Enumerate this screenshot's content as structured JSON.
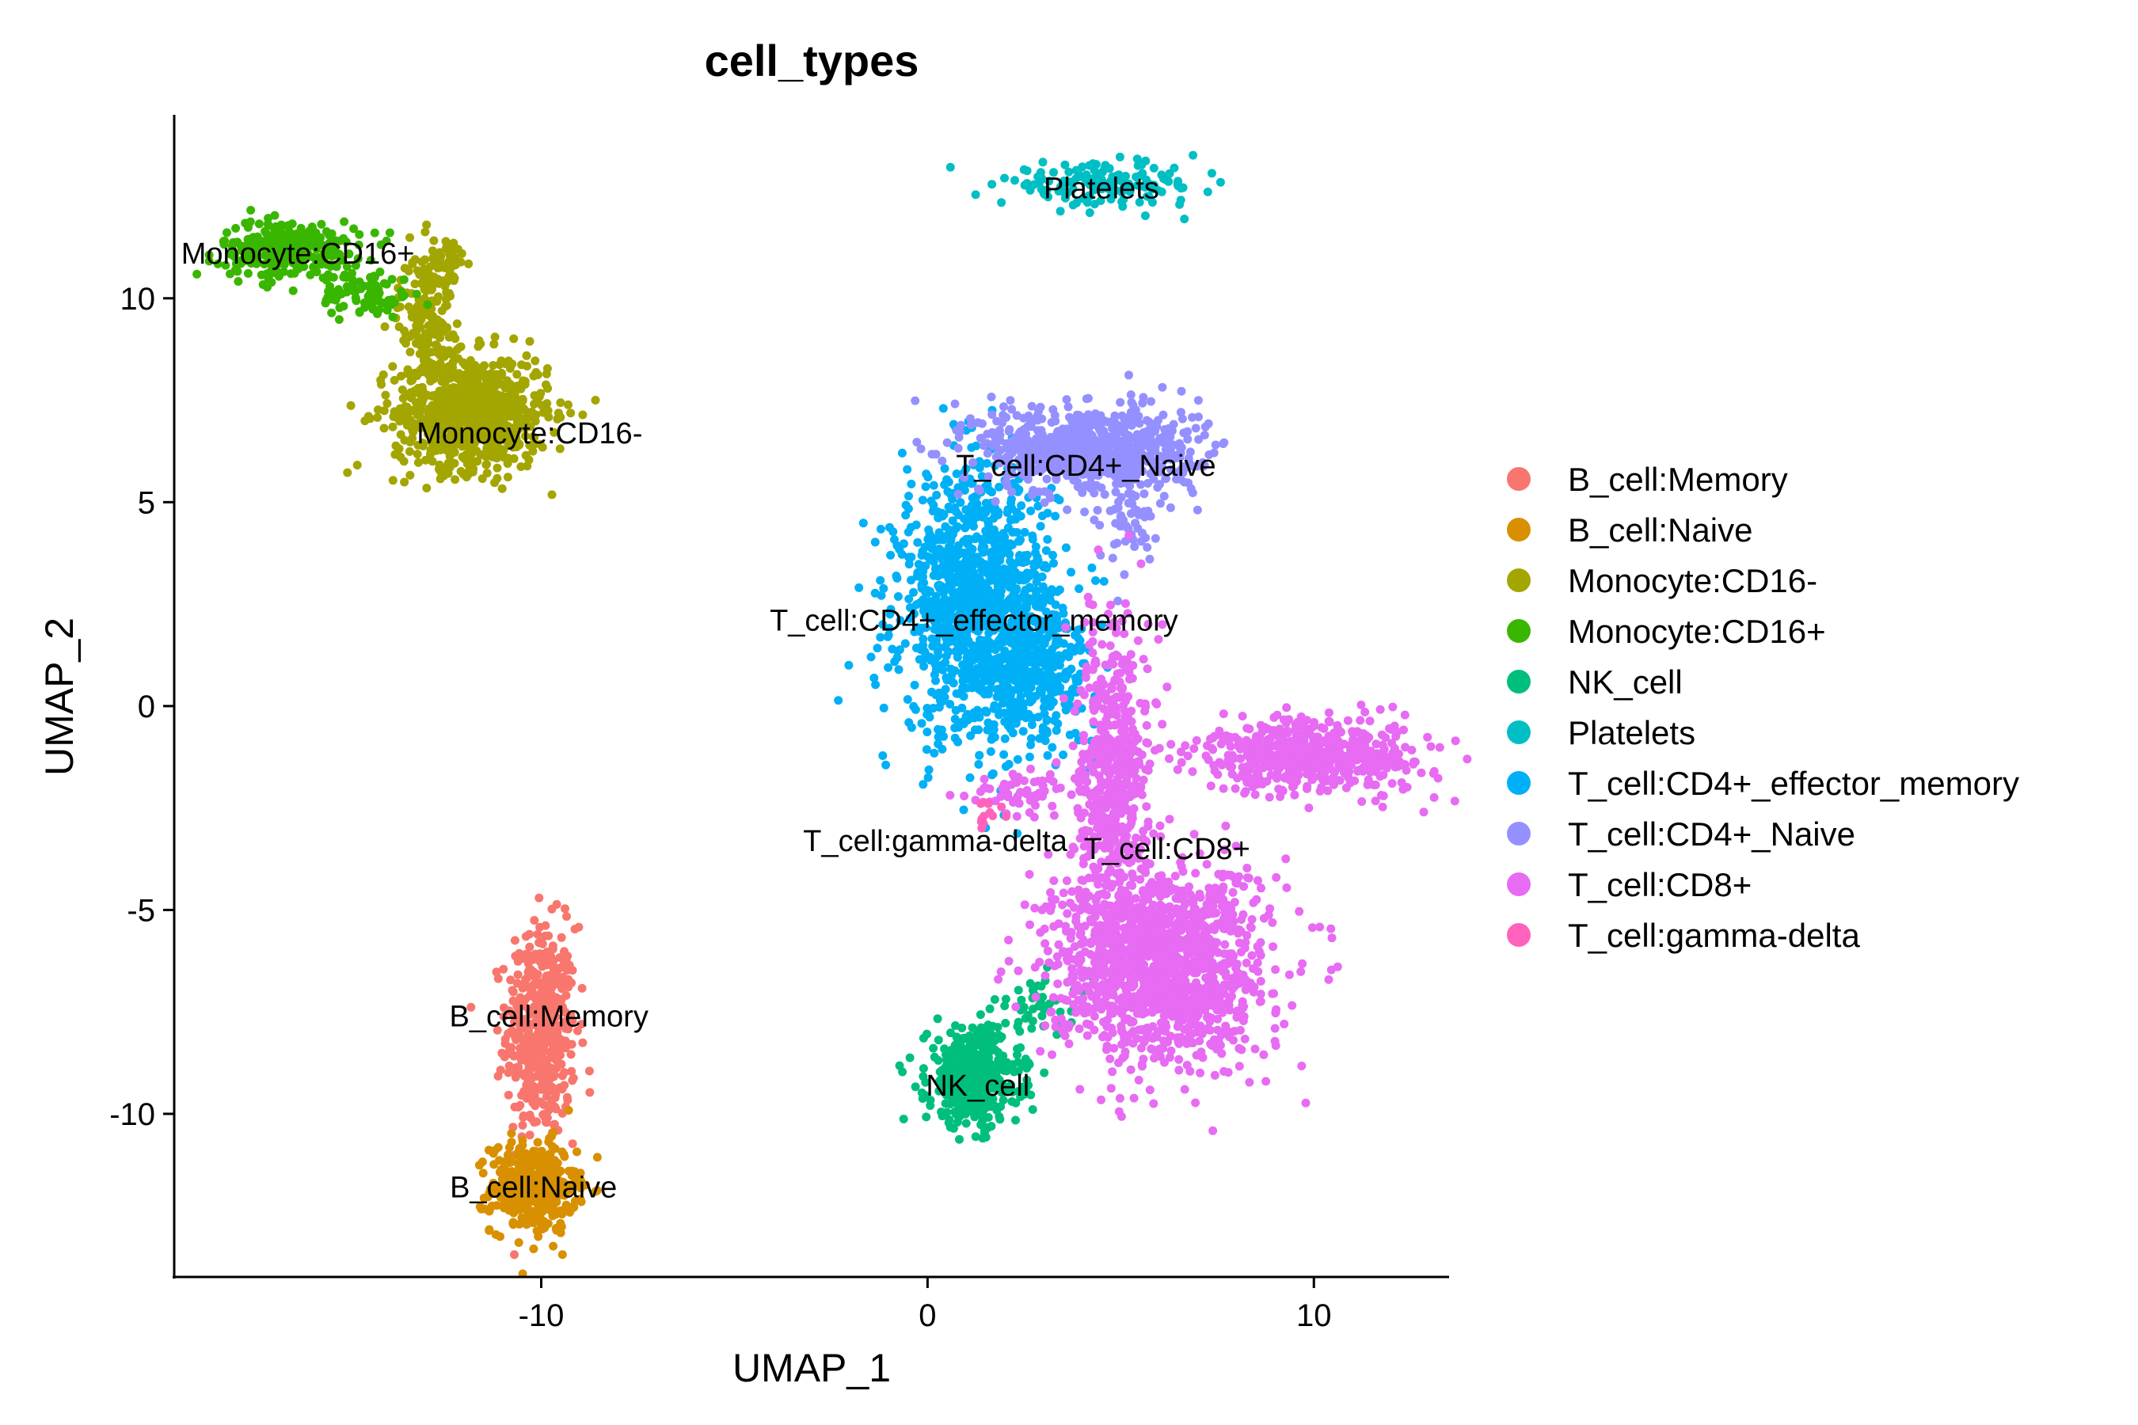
{
  "chart_data": {
    "type": "scatter",
    "title": "cell_types",
    "xlabel": "UMAP_1",
    "ylabel": "UMAP_2",
    "xlim": [
      -19.5,
      13.5
    ],
    "ylim": [
      -14,
      14.5
    ],
    "xticks": [
      -10,
      0,
      10
    ],
    "yticks": [
      10,
      5,
      0,
      -5,
      -10
    ],
    "xtick_labels": [
      "-10",
      "0",
      "10"
    ],
    "ytick_labels": [
      "10",
      "5",
      "0",
      "-5",
      "-10"
    ],
    "grid": false,
    "legend_position": "right",
    "series": [
      {
        "name": "B_cell:Memory",
        "color": "#F8766D",
        "clusters": [
          {
            "cx": -10.0,
            "cy": -8.0,
            "sx": 0.45,
            "sy": 1.3,
            "n": 500
          }
        ],
        "label": "B_cell:Memory",
        "label_pos": [
          -9.8,
          -7.6
        ]
      },
      {
        "name": "B_cell:Naive",
        "color": "#D89000",
        "clusters": [
          {
            "cx": -10.2,
            "cy": -11.8,
            "sx": 0.55,
            "sy": 0.55,
            "n": 400
          }
        ],
        "label": "B_cell:Naive",
        "label_pos": [
          -10.2,
          -11.8
        ]
      },
      {
        "name": "Monocyte:CD16-",
        "color": "#A3A500",
        "clusters": [
          {
            "cx": -11.8,
            "cy": 7.2,
            "sx": 1.0,
            "sy": 0.7,
            "n": 800
          },
          {
            "cx": -13.0,
            "cy": 9.5,
            "sx": 0.35,
            "sy": 0.8,
            "n": 150
          },
          {
            "cx": -12.5,
            "cy": 10.7,
            "sx": 0.25,
            "sy": 0.5,
            "n": 60
          }
        ],
        "label": "Monocyte:CD16-",
        "label_pos": [
          -10.3,
          6.7
        ]
      },
      {
        "name": "Monocyte:CD16+",
        "color": "#39B600",
        "clusters": [
          {
            "cx": -16.5,
            "cy": 11.2,
            "sx": 0.9,
            "sy": 0.35,
            "n": 300
          },
          {
            "cx": -14.5,
            "cy": 10.1,
            "sx": 0.6,
            "sy": 0.3,
            "n": 80
          }
        ],
        "label": "Monocyte:CD16+",
        "label_pos": [
          -16.3,
          11.1
        ]
      },
      {
        "name": "NK_cell",
        "color": "#00BF7D",
        "clusters": [
          {
            "cx": 1.2,
            "cy": -9.1,
            "sx": 0.6,
            "sy": 0.6,
            "n": 450
          },
          {
            "cx": 3.0,
            "cy": -7.3,
            "sx": 0.6,
            "sy": 0.35,
            "n": 40
          }
        ],
        "label": "NK_cell",
        "label_pos": [
          1.3,
          -9.3
        ]
      },
      {
        "name": "Platelets",
        "color": "#00BFC4",
        "clusters": [
          {
            "cx": 4.5,
            "cy": 12.8,
            "sx": 1.3,
            "sy": 0.25,
            "n": 160
          }
        ],
        "label": "Platelets",
        "label_pos": [
          4.5,
          12.7
        ]
      },
      {
        "name": "T_cell:CD4+_effector_memory",
        "color": "#00B0F6",
        "clusters": [
          {
            "cx": 1.3,
            "cy": 2.5,
            "sx": 1.0,
            "sy": 1.6,
            "n": 1200
          },
          {
            "cx": 2.8,
            "cy": 0.8,
            "sx": 0.8,
            "sy": 0.8,
            "n": 300
          }
        ],
        "label": "T_cell:CD4+_effector_memory",
        "label_pos": [
          1.2,
          2.1
        ]
      },
      {
        "name": "T_cell:CD4+_Naive",
        "color": "#9590FF",
        "clusters": [
          {
            "cx": 4.2,
            "cy": 6.3,
            "sx": 1.4,
            "sy": 0.55,
            "n": 700
          },
          {
            "cx": 5.2,
            "cy": 4.7,
            "sx": 0.4,
            "sy": 0.6,
            "n": 60
          }
        ],
        "label": "T_cell:CD4+_Naive",
        "label_pos": [
          4.1,
          5.9
        ]
      },
      {
        "name": "T_cell:CD8+",
        "color": "#E76BF3",
        "clusters": [
          {
            "cx": 6.0,
            "cy": -6.3,
            "sx": 1.4,
            "sy": 1.2,
            "n": 1400
          },
          {
            "cx": 4.8,
            "cy": -1.5,
            "sx": 0.45,
            "sy": 1.8,
            "n": 500
          },
          {
            "cx": 10.0,
            "cy": -1.2,
            "sx": 1.5,
            "sy": 0.45,
            "n": 550
          },
          {
            "cx": 2.5,
            "cy": -2.2,
            "sx": 0.7,
            "sy": 0.3,
            "n": 60
          }
        ],
        "label": "T_cell:CD8+",
        "label_pos": [
          6.2,
          -3.5
        ]
      },
      {
        "name": "T_cell:gamma-delta",
        "color": "#FF62BC",
        "clusters": [
          {
            "cx": 1.5,
            "cy": -2.7,
            "sx": 0.3,
            "sy": 0.2,
            "n": 12
          }
        ],
        "label": "T_cell:gamma-delta",
        "label_pos": [
          0.2,
          -3.3
        ]
      }
    ]
  }
}
